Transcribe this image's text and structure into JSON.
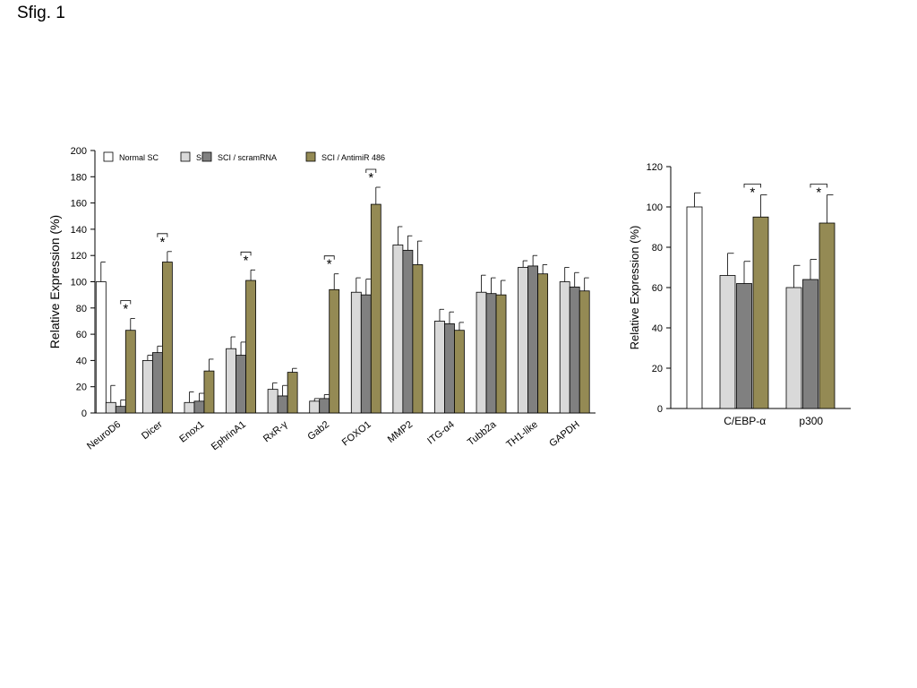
{
  "figure_label": "Sfig. 1",
  "colors": {
    "Normal SC": "#ffffff",
    "SCI": "#d9d9d9",
    "SCI / scramRNA": "#808080",
    "SCI / AntimiR 486": "#948a54",
    "outline": "#000000"
  },
  "chart_data": [
    {
      "type": "bar",
      "title": "",
      "xlabel": "",
      "ylabel": "Relative Expression (%)",
      "ylim": [
        0,
        200
      ],
      "yticks": [
        0,
        20,
        40,
        60,
        80,
        100,
        120,
        140,
        160,
        180,
        200
      ],
      "legend_position": "top-left",
      "legend": [
        "Normal SC",
        "SCI",
        "SCI / scramRNA",
        "SCI / AntimiR 486"
      ],
      "categories": [
        "NeuroD6",
        "Dicer",
        "Enox1",
        "EphrinA1",
        "RxR-γ",
        "Gab2",
        "FOXO1",
        "MMP2",
        "ITG-α4",
        "Tubb2a",
        "TH1-like",
        "GAPDH"
      ],
      "series": [
        {
          "name": "Normal SC",
          "values": [
            100,
            null,
            null,
            null,
            null,
            null,
            null,
            null,
            null,
            null,
            null,
            null
          ],
          "errors": [
            15,
            null,
            null,
            null,
            null,
            null,
            null,
            null,
            null,
            null,
            null,
            null
          ]
        },
        {
          "name": "SCI",
          "values": [
            8,
            40,
            8,
            49,
            18,
            9,
            92,
            128,
            70,
            92,
            111,
            100
          ],
          "errors": [
            13,
            4,
            8,
            9,
            5,
            2,
            11,
            14,
            9,
            13,
            5,
            11
          ]
        },
        {
          "name": "SCI / scramRNA",
          "values": [
            5,
            46,
            9,
            44,
            13,
            11,
            90,
            124,
            68,
            91,
            112,
            96
          ],
          "errors": [
            5,
            5,
            6,
            10,
            8,
            3,
            12,
            11,
            9,
            12,
            8,
            11
          ]
        },
        {
          "name": "SCI / AntimiR 486",
          "values": [
            63,
            115,
            32,
            101,
            31,
            94,
            159,
            113,
            63,
            90,
            106,
            93
          ],
          "errors": [
            9,
            8,
            9,
            8,
            3,
            12,
            13,
            18,
            6,
            11,
            7,
            10
          ]
        }
      ],
      "significance": [
        {
          "category": "NeuroD6",
          "label": "*"
        },
        {
          "category": "Dicer",
          "label": "*"
        },
        {
          "category": "EphrinA1",
          "label": "*"
        },
        {
          "category": "Gab2",
          "label": "*"
        },
        {
          "category": "FOXO1",
          "label": "*"
        }
      ]
    },
    {
      "type": "bar",
      "title": "",
      "xlabel": "",
      "ylabel": "Relative Expression (%)",
      "ylim": [
        0,
        120
      ],
      "yticks": [
        0,
        20,
        40,
        60,
        80,
        100,
        120
      ],
      "categories": [
        "",
        "C/EBP-α",
        "p300"
      ],
      "series": [
        {
          "name": "Normal SC",
          "values": [
            100,
            null,
            null
          ],
          "errors": [
            7,
            null,
            null
          ]
        },
        {
          "name": "SCI",
          "values": [
            null,
            66,
            60
          ],
          "errors": [
            null,
            11,
            11
          ]
        },
        {
          "name": "SCI / scramRNA",
          "values": [
            null,
            62,
            64
          ],
          "errors": [
            null,
            11,
            10
          ]
        },
        {
          "name": "SCI / AntimiR 486",
          "values": [
            null,
            95,
            92
          ],
          "errors": [
            null,
            11,
            14
          ]
        }
      ],
      "significance": [
        {
          "category": "C/EBP-α",
          "label": "*"
        },
        {
          "category": "p300",
          "label": "*"
        }
      ]
    }
  ]
}
